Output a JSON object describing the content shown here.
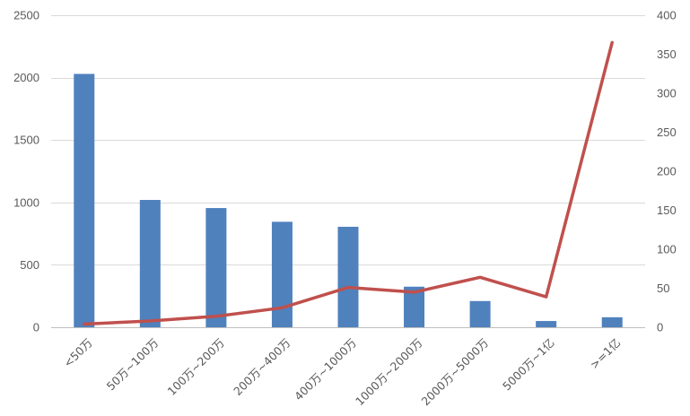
{
  "chart_data": {
    "type": "bar",
    "categories": [
      "<50万",
      "50万~100万",
      "100万~200万",
      "200万~400万",
      "400万~1000万",
      "1000万~2000万",
      "2000万~5000万",
      "5000万~1亿",
      ">=1亿"
    ],
    "series": [
      {
        "type": "bar",
        "axis": "left",
        "values": [
          2030,
          1020,
          955,
          845,
          805,
          325,
          210,
          50,
          80
        ],
        "color": "#4F81BD"
      },
      {
        "type": "line",
        "axis": "right",
        "values": [
          4,
          8,
          14,
          25,
          51,
          45,
          64,
          39,
          365
        ],
        "color": "#C0504D"
      }
    ],
    "y_left": {
      "min": 0,
      "max": 2500,
      "ticks": [
        0,
        500,
        1000,
        1500,
        2000,
        2500
      ]
    },
    "y_right": {
      "min": 0,
      "max": 400,
      "ticks": [
        0,
        50,
        100,
        150,
        200,
        250,
        300,
        350,
        400
      ]
    },
    "grid": true,
    "title": "",
    "xlabel": "",
    "ylabel": ""
  }
}
